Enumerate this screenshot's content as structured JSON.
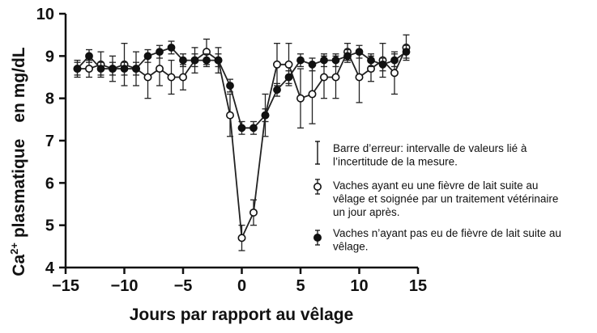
{
  "chart_data": {
    "type": "line",
    "xlabel": "Jours par rapport au vêlage",
    "ylabel": {
      "main": "Ca",
      "sup": "2+",
      "rest": " plasmatique",
      "unit": "en mg/dL"
    },
    "xlim": [
      -15,
      15
    ],
    "ylim": [
      4,
      10
    ],
    "xticks": [
      {
        "value": -15,
        "label": "−15"
      },
      {
        "value": -10,
        "label": "−10"
      },
      {
        "value": -5,
        "label": "−5"
      },
      {
        "value": 0,
        "label": "0"
      },
      {
        "value": 5,
        "label": "5"
      },
      {
        "value": 10,
        "label": "10"
      },
      {
        "value": 15,
        "label": "15"
      }
    ],
    "yticks": [
      {
        "value": 4,
        "label": "4"
      },
      {
        "value": 5,
        "label": "5"
      },
      {
        "value": 6,
        "label": "6"
      },
      {
        "value": 7,
        "label": "7"
      },
      {
        "value": 8,
        "label": "8"
      },
      {
        "value": 9,
        "label": "9"
      },
      {
        "value": 10,
        "label": "10"
      }
    ],
    "grid": false,
    "legend_position": "right",
    "series": [
      {
        "id": "fever",
        "marker": "open-circle",
        "x": [
          -14,
          -13,
          -12,
          -11,
          -10,
          -9,
          -8,
          -7,
          -6,
          -5,
          -4,
          -3,
          -2,
          -1,
          0,
          1,
          2,
          3,
          4,
          5,
          6,
          7,
          8,
          9,
          10,
          11,
          12,
          13,
          14
        ],
        "y": [
          8.7,
          8.7,
          8.8,
          8.7,
          8.8,
          8.7,
          8.5,
          8.7,
          8.5,
          8.5,
          8.9,
          9.1,
          8.9,
          7.6,
          4.7,
          5.3,
          7.6,
          8.8,
          8.8,
          8.0,
          8.1,
          8.5,
          8.5,
          9.1,
          8.5,
          8.7,
          8.9,
          8.6,
          9.2
        ],
        "err": [
          0.2,
          0.2,
          0.3,
          0.3,
          0.5,
          0.4,
          0.5,
          0.4,
          0.4,
          0.3,
          0.3,
          0.3,
          0.3,
          0.5,
          0.3,
          0.3,
          0.5,
          0.5,
          0.5,
          0.7,
          0.7,
          0.5,
          0.5,
          0.2,
          0.6,
          0.3,
          0.4,
          0.5,
          0.3
        ]
      },
      {
        "id": "no-fever",
        "marker": "filled-circle",
        "x": [
          -14,
          -13,
          -12,
          -11,
          -10,
          -9,
          -8,
          -7,
          -6,
          -5,
          -4,
          -3,
          -2,
          -1,
          0,
          1,
          2,
          3,
          4,
          5,
          6,
          7,
          8,
          9,
          10,
          11,
          12,
          13,
          14
        ],
        "y": [
          8.7,
          9.0,
          8.7,
          8.7,
          8.7,
          8.7,
          9.0,
          9.1,
          9.2,
          8.9,
          8.9,
          8.9,
          8.9,
          8.3,
          7.3,
          7.3,
          7.6,
          8.2,
          8.5,
          8.9,
          8.8,
          8.9,
          8.9,
          9.0,
          9.1,
          8.9,
          8.8,
          8.9,
          9.1
        ],
        "err": [
          0.15,
          0.15,
          0.15,
          0.15,
          0.15,
          0.15,
          0.15,
          0.15,
          0.15,
          0.15,
          0.15,
          0.15,
          0.15,
          0.15,
          0.15,
          0.15,
          0.15,
          0.15,
          0.15,
          0.15,
          0.15,
          0.15,
          0.15,
          0.15,
          0.15,
          0.15,
          0.15,
          0.15,
          0.15
        ]
      }
    ],
    "legend": [
      {
        "symbol": "error-bar",
        "lines": [
          "Barre d’erreur: intervalle de valeurs lié à",
          "l’incertitude de la mesure."
        ]
      },
      {
        "symbol": "open-circle",
        "lines": [
          "Vaches ayant eu une fièvre de lait suite au",
          "vêlage et soignée par un traitement vétérinaire",
          "un jour après."
        ]
      },
      {
        "symbol": "filled-circle",
        "lines": [
          "Vaches n’ayant pas eu de fièvre de lait suite au",
          "vêlage."
        ]
      }
    ]
  }
}
